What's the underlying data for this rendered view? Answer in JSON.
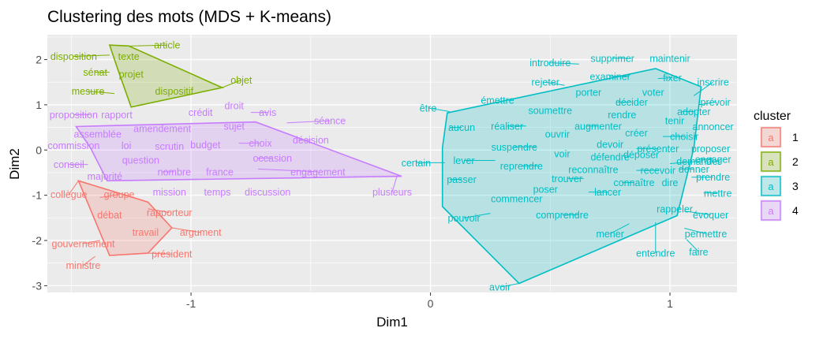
{
  "chart_data": {
    "type": "scatter",
    "title": "Clustering des mots (MDS + K-means)",
    "xlabel": "Dim1",
    "ylabel": "Dim2",
    "xlim": [
      -1.6,
      1.28
    ],
    "ylim": [
      -3.15,
      2.55
    ],
    "x_ticks": [
      -1,
      0,
      1
    ],
    "x_tick_labels": [
      "-1",
      "0",
      "1"
    ],
    "y_ticks": [
      -3,
      -2,
      -1,
      0,
      1,
      2
    ],
    "y_tick_labels": [
      "-3",
      "-2",
      "-1",
      "0",
      "1",
      "2"
    ],
    "grid": true,
    "legend": {
      "title": "cluster",
      "placement": "right",
      "key_glyph": "a",
      "items": [
        {
          "label": "1",
          "color": "#F8766D"
        },
        {
          "label": "2",
          "color": "#7CAE00"
        },
        {
          "label": "3",
          "color": "#00BFC4"
        },
        {
          "label": "4",
          "color": "#C77CFF"
        }
      ]
    },
    "series": [
      {
        "cluster": "1",
        "color": "#F8766D",
        "hull": [
          [
            -1.47,
            -0.68
          ],
          [
            -1.34,
            -2.33
          ],
          [
            -1.18,
            -2.28
          ],
          [
            -1.08,
            -1.72
          ],
          [
            -1.18,
            -1.15
          ]
        ],
        "points": [
          {
            "label": "collègue",
            "x": -1.47,
            "y": -0.68,
            "lx": -1.51,
            "ly": -0.98
          },
          {
            "label": "groupe",
            "x": -1.38,
            "y": -1.05,
            "lx": -1.3,
            "ly": -0.98
          },
          {
            "label": "débat",
            "x": -1.32,
            "y": -1.4,
            "lx": -1.34,
            "ly": -1.43
          },
          {
            "label": "rapporteur",
            "x": -1.18,
            "y": -1.3,
            "lx": -1.09,
            "ly": -1.38
          },
          {
            "label": "travail",
            "x": -1.22,
            "y": -1.82,
            "lx": -1.19,
            "ly": -1.82
          },
          {
            "label": "argument",
            "x": -1.08,
            "y": -1.72,
            "lx": -0.96,
            "ly": -1.82
          },
          {
            "label": "gouvernement",
            "x": -1.38,
            "y": -2.0,
            "lx": -1.45,
            "ly": -2.07
          },
          {
            "label": "président",
            "x": -1.18,
            "y": -2.28,
            "lx": -1.08,
            "ly": -2.3
          },
          {
            "label": "ministre",
            "x": -1.4,
            "y": -2.35,
            "lx": -1.45,
            "ly": -2.55
          }
        ]
      },
      {
        "cluster": "2",
        "color": "#7CAE00",
        "hull": [
          [
            -1.34,
            2.32
          ],
          [
            -1.26,
            2.3
          ],
          [
            -0.87,
            1.38
          ],
          [
            -1.25,
            0.95
          ],
          [
            -1.3,
            1.7
          ]
        ],
        "points": [
          {
            "label": "article",
            "x": -1.26,
            "y": 2.3,
            "lx": -1.1,
            "ly": 2.32
          },
          {
            "label": "disposition",
            "x": -1.34,
            "y": 2.1,
            "lx": -1.49,
            "ly": 2.07
          },
          {
            "label": "texte",
            "x": -1.3,
            "y": 2.08,
            "lx": -1.26,
            "ly": 2.07
          },
          {
            "label": "sénat",
            "x": -1.34,
            "y": 1.72,
            "lx": -1.4,
            "ly": 1.72
          },
          {
            "label": "projet",
            "x": -1.26,
            "y": 1.68,
            "lx": -1.25,
            "ly": 1.68
          },
          {
            "label": "objet",
            "x": -0.87,
            "y": 1.38,
            "lx": -0.79,
            "ly": 1.55
          },
          {
            "label": "mesure",
            "x": -1.32,
            "y": 1.25,
            "lx": -1.43,
            "ly": 1.3
          },
          {
            "label": "dispositif",
            "x": -1.1,
            "y": 1.3,
            "lx": -1.07,
            "ly": 1.3
          }
        ]
      },
      {
        "cluster": "3",
        "color": "#00BFC4",
        "hull": [
          [
            0.07,
            0.82
          ],
          [
            0.94,
            1.8
          ],
          [
            1.13,
            1.4
          ],
          [
            1.1,
            0.05
          ],
          [
            1.03,
            -1.45
          ],
          [
            0.37,
            -2.95
          ],
          [
            0.05,
            -1.25
          ],
          [
            0.05,
            0.05
          ]
        ],
        "points": [
          {
            "label": "introduire",
            "x": 0.62,
            "y": 1.9,
            "lx": 0.5,
            "ly": 1.93
          },
          {
            "label": "supprimer",
            "x": 0.82,
            "y": 2.03,
            "lx": 0.76,
            "ly": 2.03
          },
          {
            "label": "maintenir",
            "x": 0.97,
            "y": 2.03,
            "lx": 1.0,
            "ly": 2.03
          },
          {
            "label": "examiner",
            "x": 0.83,
            "y": 1.63,
            "lx": 0.75,
            "ly": 1.63
          },
          {
            "label": "fixer",
            "x": 0.95,
            "y": 1.58,
            "lx": 1.01,
            "ly": 1.6
          },
          {
            "label": "rejeter",
            "x": 0.56,
            "y": 1.43,
            "lx": 0.48,
            "ly": 1.5
          },
          {
            "label": "inscrire",
            "x": 1.1,
            "y": 1.2,
            "lx": 1.18,
            "ly": 1.5
          },
          {
            "label": "porter",
            "x": 0.7,
            "y": 1.28,
            "lx": 0.66,
            "ly": 1.28
          },
          {
            "label": "voter",
            "x": 0.89,
            "y": 1.28,
            "lx": 0.93,
            "ly": 1.28
          },
          {
            "label": "émettre",
            "x": 0.29,
            "y": 1.16,
            "lx": 0.28,
            "ly": 1.1
          },
          {
            "label": "décider",
            "x": 0.78,
            "y": 1.06,
            "lx": 0.84,
            "ly": 1.06
          },
          {
            "label": "prévoir",
            "x": 1.12,
            "y": 1.0,
            "lx": 1.19,
            "ly": 1.06
          },
          {
            "label": "être",
            "x": 0.08,
            "y": 0.85,
            "lx": -0.01,
            "ly": 0.93
          },
          {
            "label": "soumettre",
            "x": 0.53,
            "y": 0.88,
            "lx": 0.5,
            "ly": 0.88
          },
          {
            "label": "adopter",
            "x": 1.05,
            "y": 0.85,
            "lx": 1.1,
            "ly": 0.85
          },
          {
            "label": "rendre",
            "x": 0.79,
            "y": 0.8,
            "lx": 0.8,
            "ly": 0.78
          },
          {
            "label": "tenir",
            "x": 1.0,
            "y": 0.65,
            "lx": 1.02,
            "ly": 0.65
          },
          {
            "label": "annoncer",
            "x": 1.14,
            "y": 0.52,
            "lx": 1.18,
            "ly": 0.52
          },
          {
            "label": "aucun",
            "x": 0.08,
            "y": 0.5,
            "lx": 0.13,
            "ly": 0.5
          },
          {
            "label": "réaliser",
            "x": 0.4,
            "y": 0.53,
            "lx": 0.32,
            "ly": 0.53
          },
          {
            "label": "augmenter",
            "x": 0.65,
            "y": 0.53,
            "lx": 0.7,
            "ly": 0.53
          },
          {
            "label": "ouvrir",
            "x": 0.55,
            "y": 0.35,
            "lx": 0.53,
            "ly": 0.35
          },
          {
            "label": "créer",
            "x": 0.84,
            "y": 0.35,
            "lx": 0.86,
            "ly": 0.38
          },
          {
            "label": "choisir",
            "x": 0.97,
            "y": 0.3,
            "lx": 1.06,
            "ly": 0.3
          },
          {
            "label": "devoir",
            "x": 0.74,
            "y": 0.13,
            "lx": 0.75,
            "ly": 0.13
          },
          {
            "label": "suspendre",
            "x": 0.44,
            "y": 0.07,
            "lx": 0.35,
            "ly": 0.07
          },
          {
            "label": "présenter",
            "x": 0.86,
            "y": 0.03,
            "lx": 0.95,
            "ly": 0.03
          },
          {
            "label": "proposer",
            "x": 1.15,
            "y": 0.03,
            "lx": 1.17,
            "ly": 0.03
          },
          {
            "label": "voir",
            "x": 0.55,
            "y": -0.08,
            "lx": 0.55,
            "ly": -0.08
          },
          {
            "label": "défendre",
            "x": 0.73,
            "y": -0.15,
            "lx": 0.75,
            "ly": -0.15
          },
          {
            "label": "déposer",
            "x": 0.84,
            "y": -0.13,
            "lx": 0.88,
            "ly": -0.1
          },
          {
            "label": "engager",
            "x": 1.12,
            "y": -0.2,
            "lx": 1.18,
            "ly": -0.2
          },
          {
            "label": "demander",
            "x": 1.0,
            "y": -0.3,
            "lx": 1.12,
            "ly": -0.25
          },
          {
            "label": "lever",
            "x": 0.27,
            "y": -0.23,
            "lx": 0.14,
            "ly": -0.23
          },
          {
            "label": "certain",
            "x": 0.06,
            "y": -0.28,
            "lx": -0.06,
            "ly": -0.28
          },
          {
            "label": "reprendre",
            "x": 0.45,
            "y": -0.35,
            "lx": 0.38,
            "ly": -0.35
          },
          {
            "label": "donner",
            "x": 1.04,
            "y": -0.42,
            "lx": 1.1,
            "ly": -0.42
          },
          {
            "label": "reconnaître",
            "x": 0.69,
            "y": -0.43,
            "lx": 0.68,
            "ly": -0.43
          },
          {
            "label": "recevoir",
            "x": 0.86,
            "y": -0.45,
            "lx": 0.95,
            "ly": -0.45
          },
          {
            "label": "passer",
            "x": 0.08,
            "y": -0.65,
            "lx": 0.13,
            "ly": -0.65
          },
          {
            "label": "trouver",
            "x": 0.64,
            "y": -0.63,
            "lx": 0.57,
            "ly": -0.63
          },
          {
            "label": "prendre",
            "x": 1.09,
            "y": -0.6,
            "lx": 1.18,
            "ly": -0.6
          },
          {
            "label": "connaître",
            "x": 0.8,
            "y": -0.72,
            "lx": 0.85,
            "ly": -0.72
          },
          {
            "label": "dire",
            "x": 0.98,
            "y": -0.72,
            "lx": 1.0,
            "ly": -0.72
          },
          {
            "label": "poser",
            "x": 0.5,
            "y": -0.87,
            "lx": 0.48,
            "ly": -0.87
          },
          {
            "label": "lancer",
            "x": 0.66,
            "y": -0.93,
            "lx": 0.74,
            "ly": -0.93
          },
          {
            "label": "mettre",
            "x": 1.14,
            "y": -0.95,
            "lx": 1.2,
            "ly": -0.95
          },
          {
            "label": "commencer",
            "x": 0.35,
            "y": -1.08,
            "lx": 0.36,
            "ly": -1.08
          },
          {
            "label": "rappeler",
            "x": 1.02,
            "y": -1.3,
            "lx": 1.02,
            "ly": -1.3
          },
          {
            "label": "comprendre",
            "x": 0.62,
            "y": -1.43,
            "lx": 0.55,
            "ly": -1.43
          },
          {
            "label": "évoquer",
            "x": 1.06,
            "y": -1.35,
            "lx": 1.17,
            "ly": -1.43
          },
          {
            "label": "pouvoir",
            "x": 0.25,
            "y": -1.4,
            "lx": 0.14,
            "ly": -1.5
          },
          {
            "label": "permettre",
            "x": 1.06,
            "y": -1.73,
            "lx": 1.15,
            "ly": -1.85
          },
          {
            "label": "mener",
            "x": 0.83,
            "y": -1.63,
            "lx": 0.75,
            "ly": -1.85
          },
          {
            "label": "entendre",
            "x": 0.94,
            "y": -1.6,
            "lx": 0.94,
            "ly": -2.28
          },
          {
            "label": "faire",
            "x": 1.07,
            "y": -1.98,
            "lx": 1.12,
            "ly": -2.25
          },
          {
            "label": "avoir",
            "x": 0.37,
            "y": -2.95,
            "lx": 0.29,
            "ly": -3.03
          }
        ]
      },
      {
        "cluster": "4",
        "color": "#C77CFF",
        "hull": [
          [
            -1.48,
            0.52
          ],
          [
            -0.73,
            0.62
          ],
          [
            -0.12,
            -0.58
          ],
          [
            -1.35,
            -0.68
          ],
          [
            -1.42,
            0.05
          ]
        ],
        "points": [
          {
            "label": "droit",
            "x": -0.85,
            "y": 0.9,
            "lx": -0.82,
            "ly": 0.98
          },
          {
            "label": "avis",
            "x": -0.75,
            "y": 0.83,
            "lx": -0.68,
            "ly": 0.83
          },
          {
            "label": "crédit",
            "x": -1.0,
            "y": 0.83,
            "lx": -0.96,
            "ly": 0.83
          },
          {
            "label": "proposition",
            "x": -1.42,
            "y": 0.78,
            "lx": -1.49,
            "ly": 0.78
          },
          {
            "label": "rapport",
            "x": -1.28,
            "y": 0.78,
            "lx": -1.31,
            "ly": 0.78
          },
          {
            "label": "séance",
            "x": -0.6,
            "y": 0.6,
            "lx": -0.42,
            "ly": 0.65
          },
          {
            "label": "amendement",
            "x": -1.1,
            "y": 0.53,
            "lx": -1.12,
            "ly": 0.48
          },
          {
            "label": "sujet",
            "x": -0.85,
            "y": 0.53,
            "lx": -0.82,
            "ly": 0.53
          },
          {
            "label": "assemblée",
            "x": -1.41,
            "y": 0.35,
            "lx": -1.39,
            "ly": 0.35
          },
          {
            "label": "décision",
            "x": -0.55,
            "y": 0.22,
            "lx": -0.5,
            "ly": 0.22
          },
          {
            "label": "commission",
            "x": -1.46,
            "y": 0.1,
            "lx": -1.49,
            "ly": 0.1
          },
          {
            "label": "loi",
            "x": -1.28,
            "y": 0.1,
            "lx": -1.27,
            "ly": 0.1
          },
          {
            "label": "scrutin",
            "x": -1.08,
            "y": 0.08,
            "lx": -1.09,
            "ly": 0.08
          },
          {
            "label": "budget",
            "x": -0.95,
            "y": 0.12,
            "lx": -0.94,
            "ly": 0.12
          },
          {
            "label": "choix",
            "x": -0.8,
            "y": 0.15,
            "lx": -0.71,
            "ly": 0.15
          },
          {
            "label": "question",
            "x": -1.25,
            "y": -0.22,
            "lx": -1.21,
            "ly": -0.22
          },
          {
            "label": "occasion",
            "x": -0.72,
            "y": -0.18,
            "lx": -0.66,
            "ly": -0.18
          },
          {
            "label": "conseil",
            "x": -1.43,
            "y": -0.32,
            "lx": -1.51,
            "ly": -0.32
          },
          {
            "label": "nombre",
            "x": -1.12,
            "y": -0.48,
            "lx": -1.07,
            "ly": -0.48
          },
          {
            "label": "france",
            "x": -0.92,
            "y": -0.48,
            "lx": -0.88,
            "ly": -0.48
          },
          {
            "label": "engagement",
            "x": -0.72,
            "y": -0.42,
            "lx": -0.47,
            "ly": -0.48
          },
          {
            "label": "majorité",
            "x": -1.38,
            "y": -0.58,
            "lx": -1.36,
            "ly": -0.58
          },
          {
            "label": "mission",
            "x": -1.1,
            "y": -0.93,
            "lx": -1.09,
            "ly": -0.93
          },
          {
            "label": "temps",
            "x": -0.9,
            "y": -0.93,
            "lx": -0.89,
            "ly": -0.93
          },
          {
            "label": "discussion",
            "x": -0.68,
            "y": -0.93,
            "lx": -0.68,
            "ly": -0.93
          },
          {
            "label": "plusieurs",
            "x": -0.14,
            "y": -0.58,
            "lx": -0.16,
            "ly": -0.93
          }
        ]
      }
    ]
  }
}
